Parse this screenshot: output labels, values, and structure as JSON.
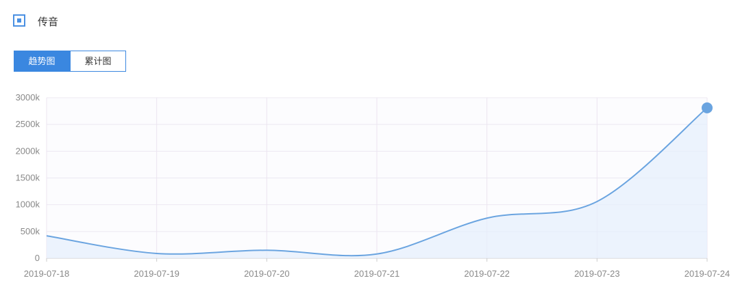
{
  "header": {
    "title": "传音"
  },
  "tabs": [
    "趋势图",
    "累计图"
  ],
  "chart_data": {
    "type": "area",
    "categories": [
      "2019-07-18",
      "2019-07-19",
      "2019-07-20",
      "2019-07-21",
      "2019-07-22",
      "2019-07-23",
      "2019-07-24"
    ],
    "series": [
      {
        "name": "传音",
        "color": "#6aa4e0",
        "values": [
          420,
          90,
          150,
          80,
          750,
          1060,
          2810
        ]
      }
    ],
    "ylim": [
      0,
      3000
    ],
    "yticks": [
      0,
      {
        "value": 500,
        "label": "500k"
      },
      {
        "value": 1000,
        "label": "1000k"
      },
      {
        "value": 1500,
        "label": "1500k"
      },
      {
        "value": 2000,
        "label": "2000k"
      },
      {
        "value": 2500,
        "label": "2500k"
      },
      {
        "value": 3000,
        "label": "3000k"
      }
    ],
    "grid": true
  }
}
